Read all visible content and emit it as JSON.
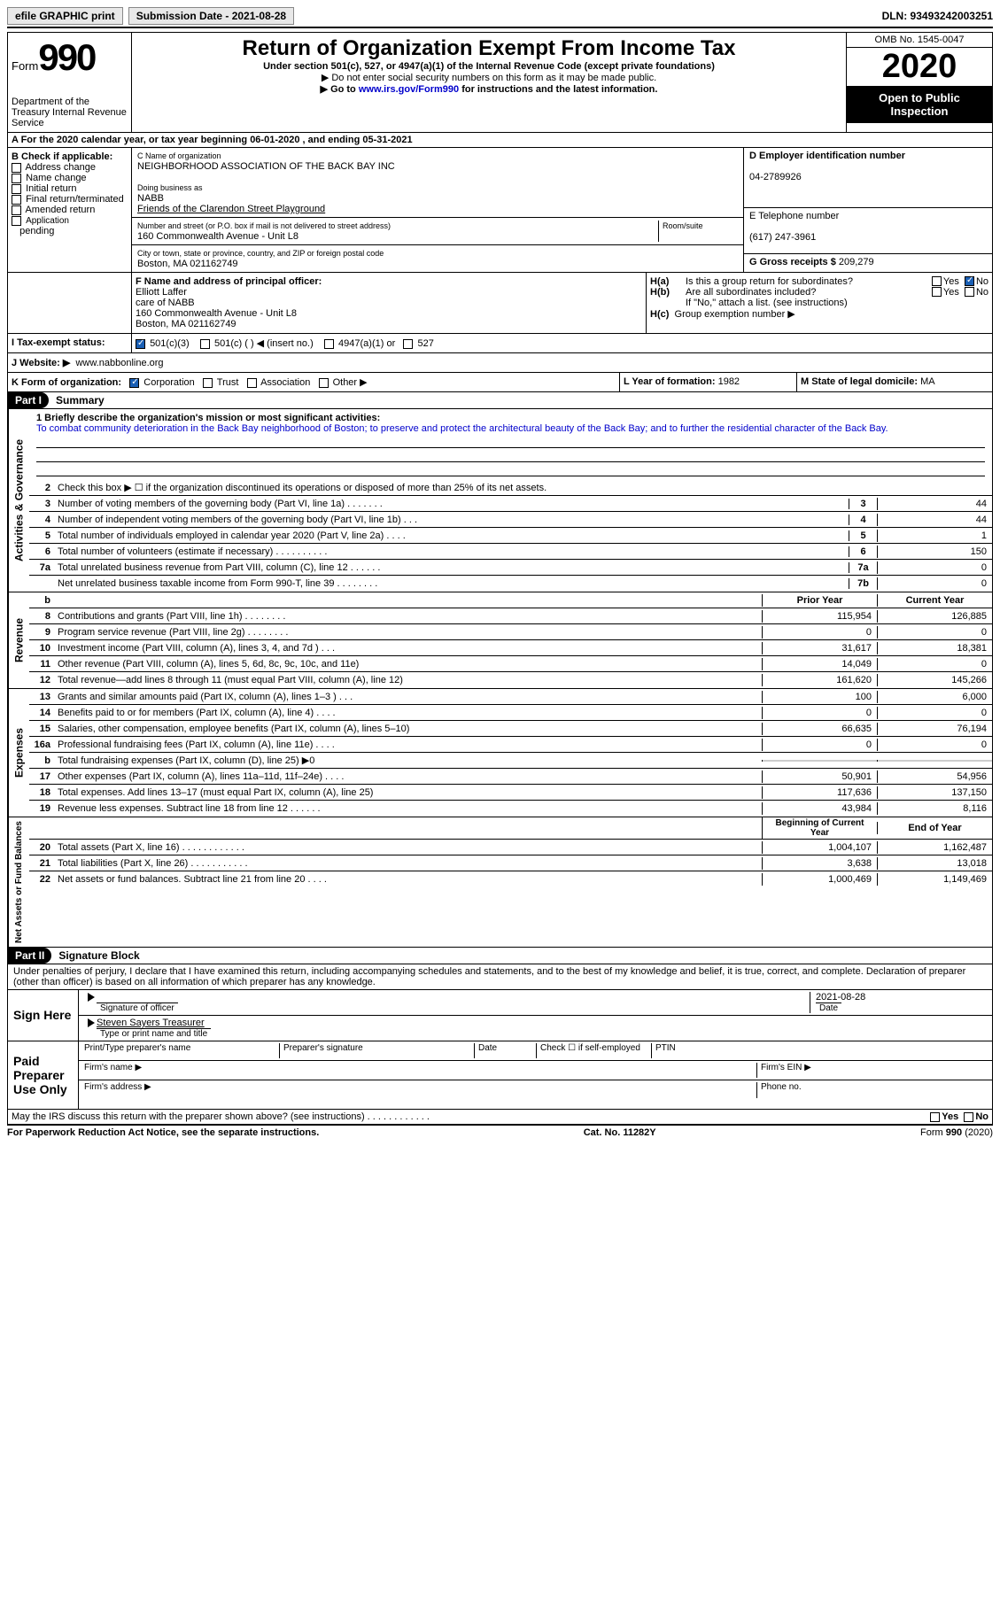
{
  "top": {
    "efile": "efile GRAPHIC print",
    "submission_label": "Submission Date - 2021-08-28",
    "dln": "DLN: 93493242003251"
  },
  "header": {
    "form_label": "Form",
    "form_number": "990",
    "dept": "Department of the Treasury\nInternal Revenue Service",
    "title": "Return of Organization Exempt From Income Tax",
    "sub1": "Under section 501(c), 527, or 4947(a)(1) of the Internal Revenue Code (except private foundations)",
    "sub2": "▶ Do not enter social security numbers on this form as it may be made public.",
    "sub3_a": "▶ Go to ",
    "sub3_link": "www.irs.gov/Form990",
    "sub3_b": " for instructions and the latest information.",
    "omb": "OMB No. 1545-0047",
    "year": "2020",
    "open": "Open to Public Inspection"
  },
  "row_a": "A For the 2020 calendar year, or tax year beginning 06-01-2020     , and ending 05-31-2021",
  "box_b": {
    "title": "B Check if applicable:",
    "opts": [
      "Address change",
      "Name change",
      "Initial return",
      "Final return/terminated",
      "Amended return",
      "Application pending"
    ]
  },
  "box_c": {
    "name_lbl": "C Name of organization",
    "name": "NEIGHBORHOOD ASSOCIATION OF THE BACK BAY INC",
    "dba_lbl": "Doing business as",
    "dba1": "NABB",
    "dba2": "Friends of the Clarendon Street Playground",
    "addr_lbl": "Number and street (or P.O. box if mail is not delivered to street address)",
    "room_lbl": "Room/suite",
    "addr": "160 Commonwealth Avenue - Unit L8",
    "city_lbl": "City or town, state or province, country, and ZIP or foreign postal code",
    "city": "Boston, MA  021162749"
  },
  "box_d": {
    "lbl": "D Employer identification number",
    "val": "04-2789926"
  },
  "box_e": {
    "lbl": "E Telephone number",
    "val": "(617) 247-3961"
  },
  "box_g": {
    "lbl": "G Gross receipts $",
    "val": "209,279"
  },
  "box_f": {
    "lbl": "F  Name and address of principal officer:",
    "lines": [
      "Elliott Laffer",
      "care of NABB",
      "160 Commonwealth Avenue - Unit L8",
      "Boston, MA  021162749"
    ]
  },
  "box_h": {
    "a": "Is this a group return for subordinates?",
    "b": "Are all subordinates included?",
    "note": "If \"No,\" attach a list. (see instructions)",
    "c": "Group exemption number ▶"
  },
  "row_i": {
    "lbl": "I   Tax-exempt status:",
    "o1": "501(c)(3)",
    "o2": "501(c) (   ) ◀ (insert no.)",
    "o3": "4947(a)(1) or",
    "o4": "527"
  },
  "row_j": {
    "lbl": "J   Website: ▶",
    "val": "www.nabbonline.org"
  },
  "row_k": {
    "lbl": "K Form of organization:",
    "o1": "Corporation",
    "o2": "Trust",
    "o3": "Association",
    "o4": "Other ▶",
    "l_lbl": "L Year of formation:",
    "l_val": "1982",
    "m_lbl": "M State of legal domicile:",
    "m_val": "MA"
  },
  "part1": {
    "num": "Part I",
    "title": "Summary"
  },
  "mission": {
    "q": "1   Briefly describe the organization's mission or most significant activities:",
    "text": "To combat community deterioration in the Back Bay neighborhood of Boston; to preserve and protect the architectural beauty of the Back Bay; and to further the residential character of the Back Bay."
  },
  "line2": "Check this box ▶ ☐  if the organization discontinued its operations or disposed of more than 25% of its net assets.",
  "gov_lines": [
    {
      "n": "3",
      "t": "Number of voting members of the governing body (Part VI, line 1a)   .   .   .   .   .   .   .",
      "c": "3",
      "v": "44"
    },
    {
      "n": "4",
      "t": "Number of independent voting members of the governing body (Part VI, line 1b)   .   .   .",
      "c": "4",
      "v": "44"
    },
    {
      "n": "5",
      "t": "Total number of individuals employed in calendar year 2020 (Part V, line 2a)   .   .   .   .",
      "c": "5",
      "v": "1"
    },
    {
      "n": "6",
      "t": "Total number of volunteers (estimate if necessary)   .   .   .   .   .   .   .   .   .   .",
      "c": "6",
      "v": "150"
    },
    {
      "n": "7a",
      "t": "Total unrelated business revenue from Part VIII, column (C), line 12   .   .   .   .   .   .",
      "c": "7a",
      "v": "0"
    },
    {
      "n": "",
      "t": "Net unrelated business taxable income from Form 990-T, line 39   .   .   .   .   .   .   .   .",
      "c": "7b",
      "v": "0"
    }
  ],
  "rev_head": {
    "b": "b",
    "py": "Prior Year",
    "cy": "Current Year"
  },
  "rev_lines": [
    {
      "n": "8",
      "t": "Contributions and grants (Part VIII, line 1h)   .   .   .   .   .   .   .   .",
      "p": "115,954",
      "c": "126,885"
    },
    {
      "n": "9",
      "t": "Program service revenue (Part VIII, line 2g)   .   .   .   .   .   .   .   .",
      "p": "0",
      "c": "0"
    },
    {
      "n": "10",
      "t": "Investment income (Part VIII, column (A), lines 3, 4, and 7d )   .   .   .",
      "p": "31,617",
      "c": "18,381"
    },
    {
      "n": "11",
      "t": "Other revenue (Part VIII, column (A), lines 5, 6d, 8c, 9c, 10c, and 11e)",
      "p": "14,049",
      "c": "0"
    },
    {
      "n": "12",
      "t": "Total revenue—add lines 8 through 11 (must equal Part VIII, column (A), line 12)",
      "p": "161,620",
      "c": "145,266"
    }
  ],
  "exp_lines": [
    {
      "n": "13",
      "t": "Grants and similar amounts paid (Part IX, column (A), lines 1–3 ) .   .   .",
      "p": "100",
      "c": "6,000"
    },
    {
      "n": "14",
      "t": "Benefits paid to or for members (Part IX, column (A), line 4)   .   .   .   .",
      "p": "0",
      "c": "0"
    },
    {
      "n": "15",
      "t": "Salaries, other compensation, employee benefits (Part IX, column (A), lines 5–10)",
      "p": "66,635",
      "c": "76,194"
    },
    {
      "n": "16a",
      "t": "Professional fundraising fees (Part IX, column (A), line 11e)   .   .   .   .",
      "p": "0",
      "c": "0"
    },
    {
      "n": "b",
      "t": "Total fundraising expenses (Part IX, column (D), line 25) ▶0",
      "p": "shade",
      "c": "shade"
    },
    {
      "n": "17",
      "t": "Other expenses (Part IX, column (A), lines 11a–11d, 11f–24e)   .   .   .   .",
      "p": "50,901",
      "c": "54,956"
    },
    {
      "n": "18",
      "t": "Total expenses. Add lines 13–17 (must equal Part IX, column (A), line 25)",
      "p": "117,636",
      "c": "137,150"
    },
    {
      "n": "19",
      "t": "Revenue less expenses. Subtract line 18 from line 12   .   .   .   .   .   .",
      "p": "43,984",
      "c": "8,116"
    }
  ],
  "na_head": {
    "py": "Beginning of Current Year",
    "cy": "End of Year"
  },
  "na_lines": [
    {
      "n": "20",
      "t": "Total assets (Part X, line 16)   .   .   .   .   .   .   .   .   .   .   .   .",
      "p": "1,004,107",
      "c": "1,162,487"
    },
    {
      "n": "21",
      "t": "Total liabilities (Part X, line 26)   .   .   .   .   .   .   .   .   .   .   .",
      "p": "3,638",
      "c": "13,018"
    },
    {
      "n": "22",
      "t": "Net assets or fund balances. Subtract line 21 from line 20   .   .   .   .",
      "p": "1,000,469",
      "c": "1,149,469"
    }
  ],
  "vert": {
    "gov": "Activities & Governance",
    "rev": "Revenue",
    "exp": "Expenses",
    "na": "Net Assets or\nFund Balances"
  },
  "part2": {
    "num": "Part II",
    "title": "Signature Block"
  },
  "perjury": "Under penalties of perjury, I declare that I have examined this return, including accompanying schedules and statements, and to the best of my knowledge and belief, it is true, correct, and complete. Declaration of preparer (other than officer) is based on all information of which preparer has any knowledge.",
  "sign": {
    "here": "Sign Here",
    "sig_lbl": "Signature of officer",
    "date": "2021-08-28",
    "date_lbl": "Date",
    "name": "Steven Sayers  Treasurer",
    "name_lbl": "Type or print name and title"
  },
  "prep": {
    "title": "Paid Preparer Use Only",
    "h1": "Print/Type preparer's name",
    "h2": "Preparer's signature",
    "h3": "Date",
    "h4": "Check ☐ if self-employed",
    "h5": "PTIN",
    "fn": "Firm's name  ▶",
    "fe": "Firm's EIN ▶",
    "fa": "Firm's address ▶",
    "ph": "Phone no."
  },
  "irs_line": "May the IRS discuss this return with the preparer shown above? (see instructions)   .   .   .   .   .   .   .   .   .   .   .   .",
  "footer": {
    "l": "For Paperwork Reduction Act Notice, see the separate instructions.",
    "m": "Cat. No. 11282Y",
    "r": "Form 990 (2020)"
  }
}
